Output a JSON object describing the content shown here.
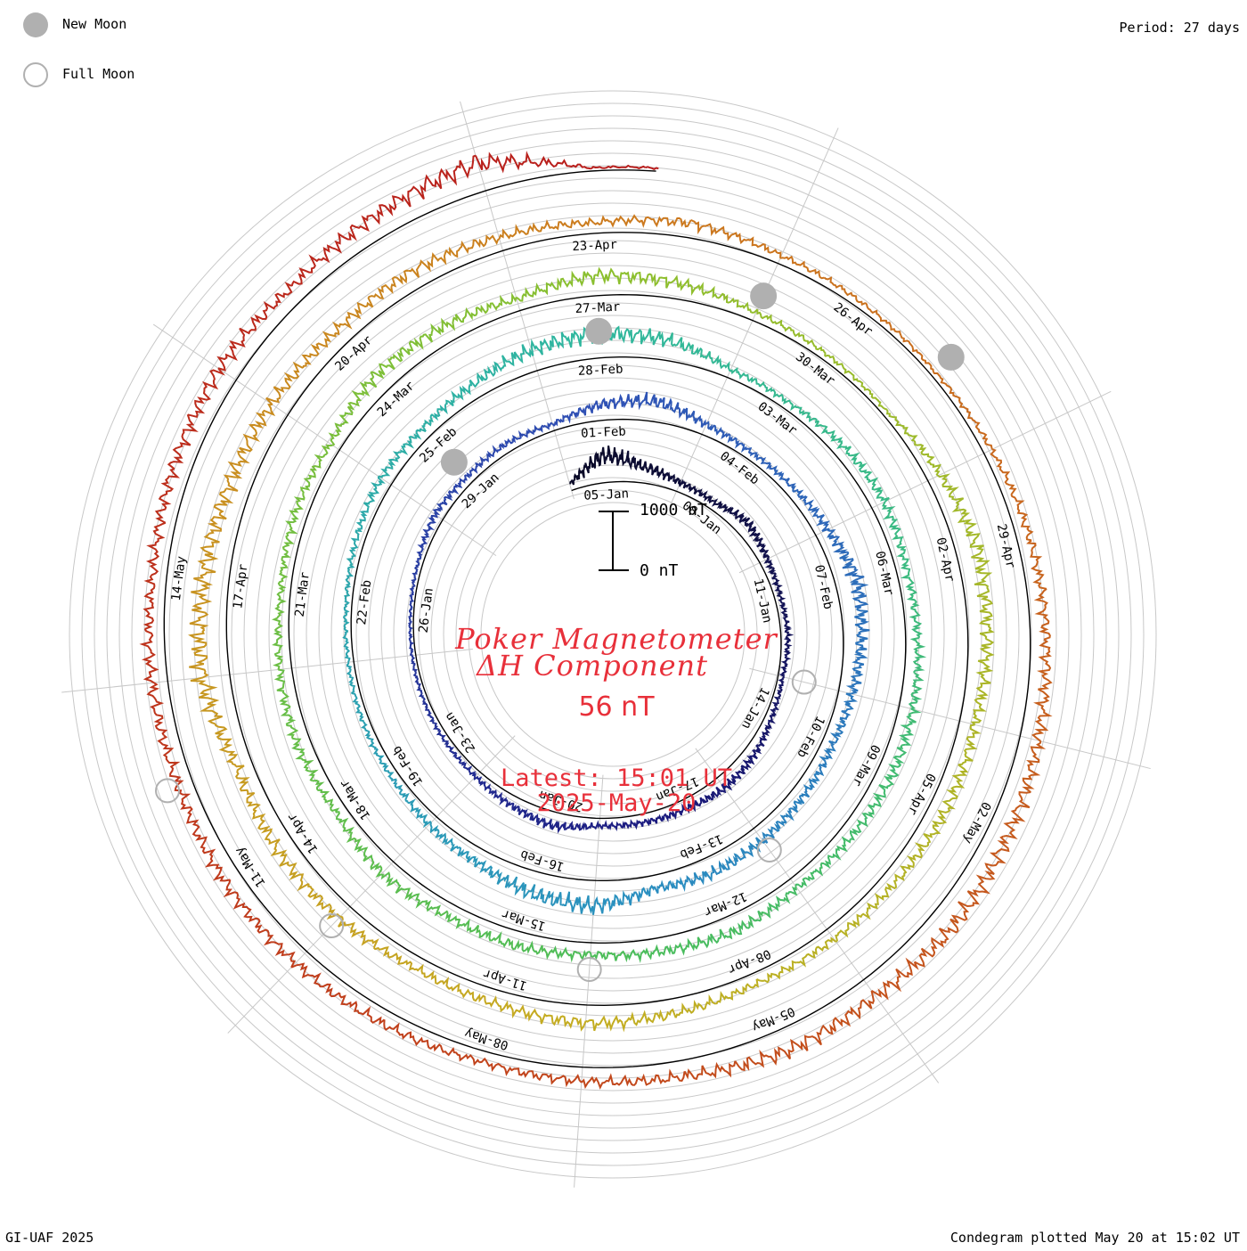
{
  "header": {
    "period": "Period: 27 days",
    "footer_left": "GI-UAF 2025",
    "footer_right": "Condegram plotted May 20 at 15:02 UT"
  },
  "legend": {
    "new_moon": "New Moon",
    "full_moon": "Full Moon",
    "new_moon_color": "#b0b0b0",
    "full_moon_color": "#b0b0b0"
  },
  "center": {
    "title_line1": "Poker Magnetometer",
    "title_line2": "ΔH Component",
    "current_value": "56 nT",
    "latest": "Latest: 15:01 UT",
    "date": "2025-May-20",
    "scale_top": "1000 nT",
    "scale_bottom": "0 nT",
    "text_color": "#e8303a"
  },
  "chart_data": {
    "type": "line",
    "subtype": "condegram-spiral",
    "period_days": 27,
    "start_date": "2025-01-04",
    "end_date": "2025-05-20",
    "scale_nT": [
      0,
      1000
    ],
    "grid": true,
    "date_tick_labels": [
      "05-Jan",
      "08-Jan",
      "11-Jan",
      "14-Jan",
      "17-Jan",
      "20-Jan",
      "23-Jan",
      "26-Jan",
      "29-Jan",
      "01-Feb",
      "04-Feb",
      "07-Feb",
      "10-Feb",
      "13-Feb",
      "16-Feb",
      "19-Feb",
      "22-Feb",
      "25-Feb",
      "28-Feb",
      "03-Mar",
      "06-Mar",
      "09-Mar",
      "12-Mar",
      "15-Mar",
      "18-Mar",
      "21-Mar",
      "24-Mar",
      "27-Mar",
      "30-Mar",
      "02-Apr",
      "05-Apr",
      "08-Apr",
      "11-Apr",
      "14-Apr",
      "17-Apr",
      "20-Apr",
      "23-Apr",
      "26-Apr",
      "29-Apr",
      "02-May",
      "05-May",
      "08-May",
      "11-May",
      "14-May"
    ],
    "new_moon_dates": [
      "2025-01-29",
      "2025-02-28",
      "2025-03-29",
      "2025-04-27"
    ],
    "full_moon_dates": [
      "2025-01-13",
      "2025-02-12",
      "2025-03-14",
      "2025-04-13",
      "2025-05-12"
    ],
    "daily_dH_nT": [
      {
        "date": "2025-01-04",
        "dH": 120
      },
      {
        "date": "2025-01-05",
        "dH": 520
      },
      {
        "date": "2025-01-06",
        "dH": 300
      },
      {
        "date": "2025-01-07",
        "dH": 180
      },
      {
        "date": "2025-01-08",
        "dH": 140
      },
      {
        "date": "2025-01-09",
        "dH": 260
      },
      {
        "date": "2025-01-10",
        "dH": 160
      },
      {
        "date": "2025-01-11",
        "dH": 110
      },
      {
        "date": "2025-01-12",
        "dH": 130
      },
      {
        "date": "2025-01-13",
        "dH": 90
      },
      {
        "date": "2025-01-14",
        "dH": 120
      },
      {
        "date": "2025-01-15",
        "dH": 200
      },
      {
        "date": "2025-01-16",
        "dH": 240
      },
      {
        "date": "2025-01-17",
        "dH": 180
      },
      {
        "date": "2025-01-18",
        "dH": 160
      },
      {
        "date": "2025-01-19",
        "dH": 140
      },
      {
        "date": "2025-01-20",
        "dH": 260
      },
      {
        "date": "2025-01-21",
        "dH": 180
      },
      {
        "date": "2025-01-22",
        "dH": 120
      },
      {
        "date": "2025-01-23",
        "dH": 100
      },
      {
        "date": "2025-01-24",
        "dH": 80
      },
      {
        "date": "2025-01-25",
        "dH": 70
      },
      {
        "date": "2025-01-26",
        "dH": 60
      },
      {
        "date": "2025-01-27",
        "dH": 90
      },
      {
        "date": "2025-01-28",
        "dH": 180
      },
      {
        "date": "2025-01-29",
        "dH": 140
      },
      {
        "date": "2025-01-30",
        "dH": 160
      },
      {
        "date": "2025-01-31",
        "dH": 120
      },
      {
        "date": "2025-02-01",
        "dH": 300
      },
      {
        "date": "2025-02-02",
        "dH": 380
      },
      {
        "date": "2025-02-03",
        "dH": 200
      },
      {
        "date": "2025-02-04",
        "dH": 140
      },
      {
        "date": "2025-02-05",
        "dH": 160
      },
      {
        "date": "2025-02-06",
        "dH": 250
      },
      {
        "date": "2025-02-07",
        "dH": 420
      },
      {
        "date": "2025-02-08",
        "dH": 330
      },
      {
        "date": "2025-02-09",
        "dH": 260
      },
      {
        "date": "2025-02-10",
        "dH": 210
      },
      {
        "date": "2025-02-11",
        "dH": 230
      },
      {
        "date": "2025-02-12",
        "dH": 280
      },
      {
        "date": "2025-02-13",
        "dH": 320
      },
      {
        "date": "2025-02-14",
        "dH": 240
      },
      {
        "date": "2025-02-15",
        "dH": 480
      },
      {
        "date": "2025-02-16",
        "dH": 420
      },
      {
        "date": "2025-02-17",
        "dH": 260
      },
      {
        "date": "2025-02-18",
        "dH": 200
      },
      {
        "date": "2025-02-19",
        "dH": 140
      },
      {
        "date": "2025-02-20",
        "dH": 120
      },
      {
        "date": "2025-02-21",
        "dH": 100
      },
      {
        "date": "2025-02-22",
        "dH": 110
      },
      {
        "date": "2025-02-23",
        "dH": 160
      },
      {
        "date": "2025-02-24",
        "dH": 220
      },
      {
        "date": "2025-02-25",
        "dH": 200
      },
      {
        "date": "2025-02-26",
        "dH": 260
      },
      {
        "date": "2025-02-27",
        "dH": 400
      },
      {
        "date": "2025-02-28",
        "dH": 460
      },
      {
        "date": "2025-03-01",
        "dH": 380
      },
      {
        "date": "2025-03-02",
        "dH": 160
      },
      {
        "date": "2025-03-03",
        "dH": 140
      },
      {
        "date": "2025-03-04",
        "dH": 220
      },
      {
        "date": "2025-03-05",
        "dH": 260
      },
      {
        "date": "2025-03-06",
        "dH": 200
      },
      {
        "date": "2025-03-07",
        "dH": 220
      },
      {
        "date": "2025-03-08",
        "dH": 260
      },
      {
        "date": "2025-03-09",
        "dH": 300
      },
      {
        "date": "2025-03-10",
        "dH": 240
      },
      {
        "date": "2025-03-11",
        "dH": 200
      },
      {
        "date": "2025-03-12",
        "dH": 320
      },
      {
        "date": "2025-03-13",
        "dH": 260
      },
      {
        "date": "2025-03-14",
        "dH": 220
      },
      {
        "date": "2025-03-15",
        "dH": 280
      },
      {
        "date": "2025-03-16",
        "dH": 240
      },
      {
        "date": "2025-03-17",
        "dH": 300
      },
      {
        "date": "2025-03-18",
        "dH": 200
      },
      {
        "date": "2025-03-19",
        "dH": 260
      },
      {
        "date": "2025-03-20",
        "dH": 220
      },
      {
        "date": "2025-03-21",
        "dH": 180
      },
      {
        "date": "2025-03-22",
        "dH": 240
      },
      {
        "date": "2025-03-23",
        "dH": 200
      },
      {
        "date": "2025-03-24",
        "dH": 360
      },
      {
        "date": "2025-03-25",
        "dH": 320
      },
      {
        "date": "2025-03-26",
        "dH": 220
      },
      {
        "date": "2025-03-27",
        "dH": 380
      },
      {
        "date": "2025-03-28",
        "dH": 300
      },
      {
        "date": "2025-03-29",
        "dH": 160
      },
      {
        "date": "2025-03-30",
        "dH": 120
      },
      {
        "date": "2025-03-31",
        "dH": 90
      },
      {
        "date": "2025-04-01",
        "dH": 260
      },
      {
        "date": "2025-04-02",
        "dH": 420
      },
      {
        "date": "2025-04-03",
        "dH": 360
      },
      {
        "date": "2025-04-04",
        "dH": 280
      },
      {
        "date": "2025-04-05",
        "dH": 320
      },
      {
        "date": "2025-04-06",
        "dH": 260
      },
      {
        "date": "2025-04-07",
        "dH": 220
      },
      {
        "date": "2025-04-08",
        "dH": 200
      },
      {
        "date": "2025-04-09",
        "dH": 280
      },
      {
        "date": "2025-04-10",
        "dH": 340
      },
      {
        "date": "2025-04-11",
        "dH": 260
      },
      {
        "date": "2025-04-12",
        "dH": 220
      },
      {
        "date": "2025-04-13",
        "dH": 300
      },
      {
        "date": "2025-04-14",
        "dH": 340
      },
      {
        "date": "2025-04-15",
        "dH": 300
      },
      {
        "date": "2025-04-16",
        "dH": 520
      },
      {
        "date": "2025-04-17",
        "dH": 480
      },
      {
        "date": "2025-04-18",
        "dH": 420
      },
      {
        "date": "2025-04-19",
        "dH": 360
      },
      {
        "date": "2025-04-20",
        "dH": 300
      },
      {
        "date": "2025-04-21",
        "dH": 340
      },
      {
        "date": "2025-04-22",
        "dH": 260
      },
      {
        "date": "2025-04-23",
        "dH": 200
      },
      {
        "date": "2025-04-24",
        "dH": 280
      },
      {
        "date": "2025-04-25",
        "dH": 160
      },
      {
        "date": "2025-04-26",
        "dH": 120
      },
      {
        "date": "2025-04-27",
        "dH": 90
      },
      {
        "date": "2025-04-28",
        "dH": 160
      },
      {
        "date": "2025-04-29",
        "dH": 240
      },
      {
        "date": "2025-04-30",
        "dH": 300
      },
      {
        "date": "2025-05-01",
        "dH": 340
      },
      {
        "date": "2025-05-02",
        "dH": 400
      },
      {
        "date": "2025-05-03",
        "dH": 460
      },
      {
        "date": "2025-05-04",
        "dH": 380
      },
      {
        "date": "2025-05-05",
        "dH": 420
      },
      {
        "date": "2025-05-06",
        "dH": 300
      },
      {
        "date": "2025-05-07",
        "dH": 260
      },
      {
        "date": "2025-05-08",
        "dH": 200
      },
      {
        "date": "2025-05-09",
        "dH": 260
      },
      {
        "date": "2025-05-10",
        "dH": 300
      },
      {
        "date": "2025-05-11",
        "dH": 320
      },
      {
        "date": "2025-05-12",
        "dH": 280
      },
      {
        "date": "2025-05-13",
        "dH": 300
      },
      {
        "date": "2025-05-14",
        "dH": 260
      },
      {
        "date": "2025-05-15",
        "dH": 340
      },
      {
        "date": "2025-05-16",
        "dH": 380
      },
      {
        "date": "2025-05-17",
        "dH": 300
      },
      {
        "date": "2025-05-18",
        "dH": 420
      },
      {
        "date": "2025-05-19",
        "dH": 540
      },
      {
        "date": "2025-05-20",
        "dH": 56
      }
    ],
    "color_ramp": [
      "#0a0a28",
      "#1c1c80",
      "#2f4fb4",
      "#2a8fc0",
      "#2fb79e",
      "#4cbd5a",
      "#8cbf2e",
      "#c4ad22",
      "#cc7a1e",
      "#c2461c",
      "#b81c1c"
    ]
  }
}
